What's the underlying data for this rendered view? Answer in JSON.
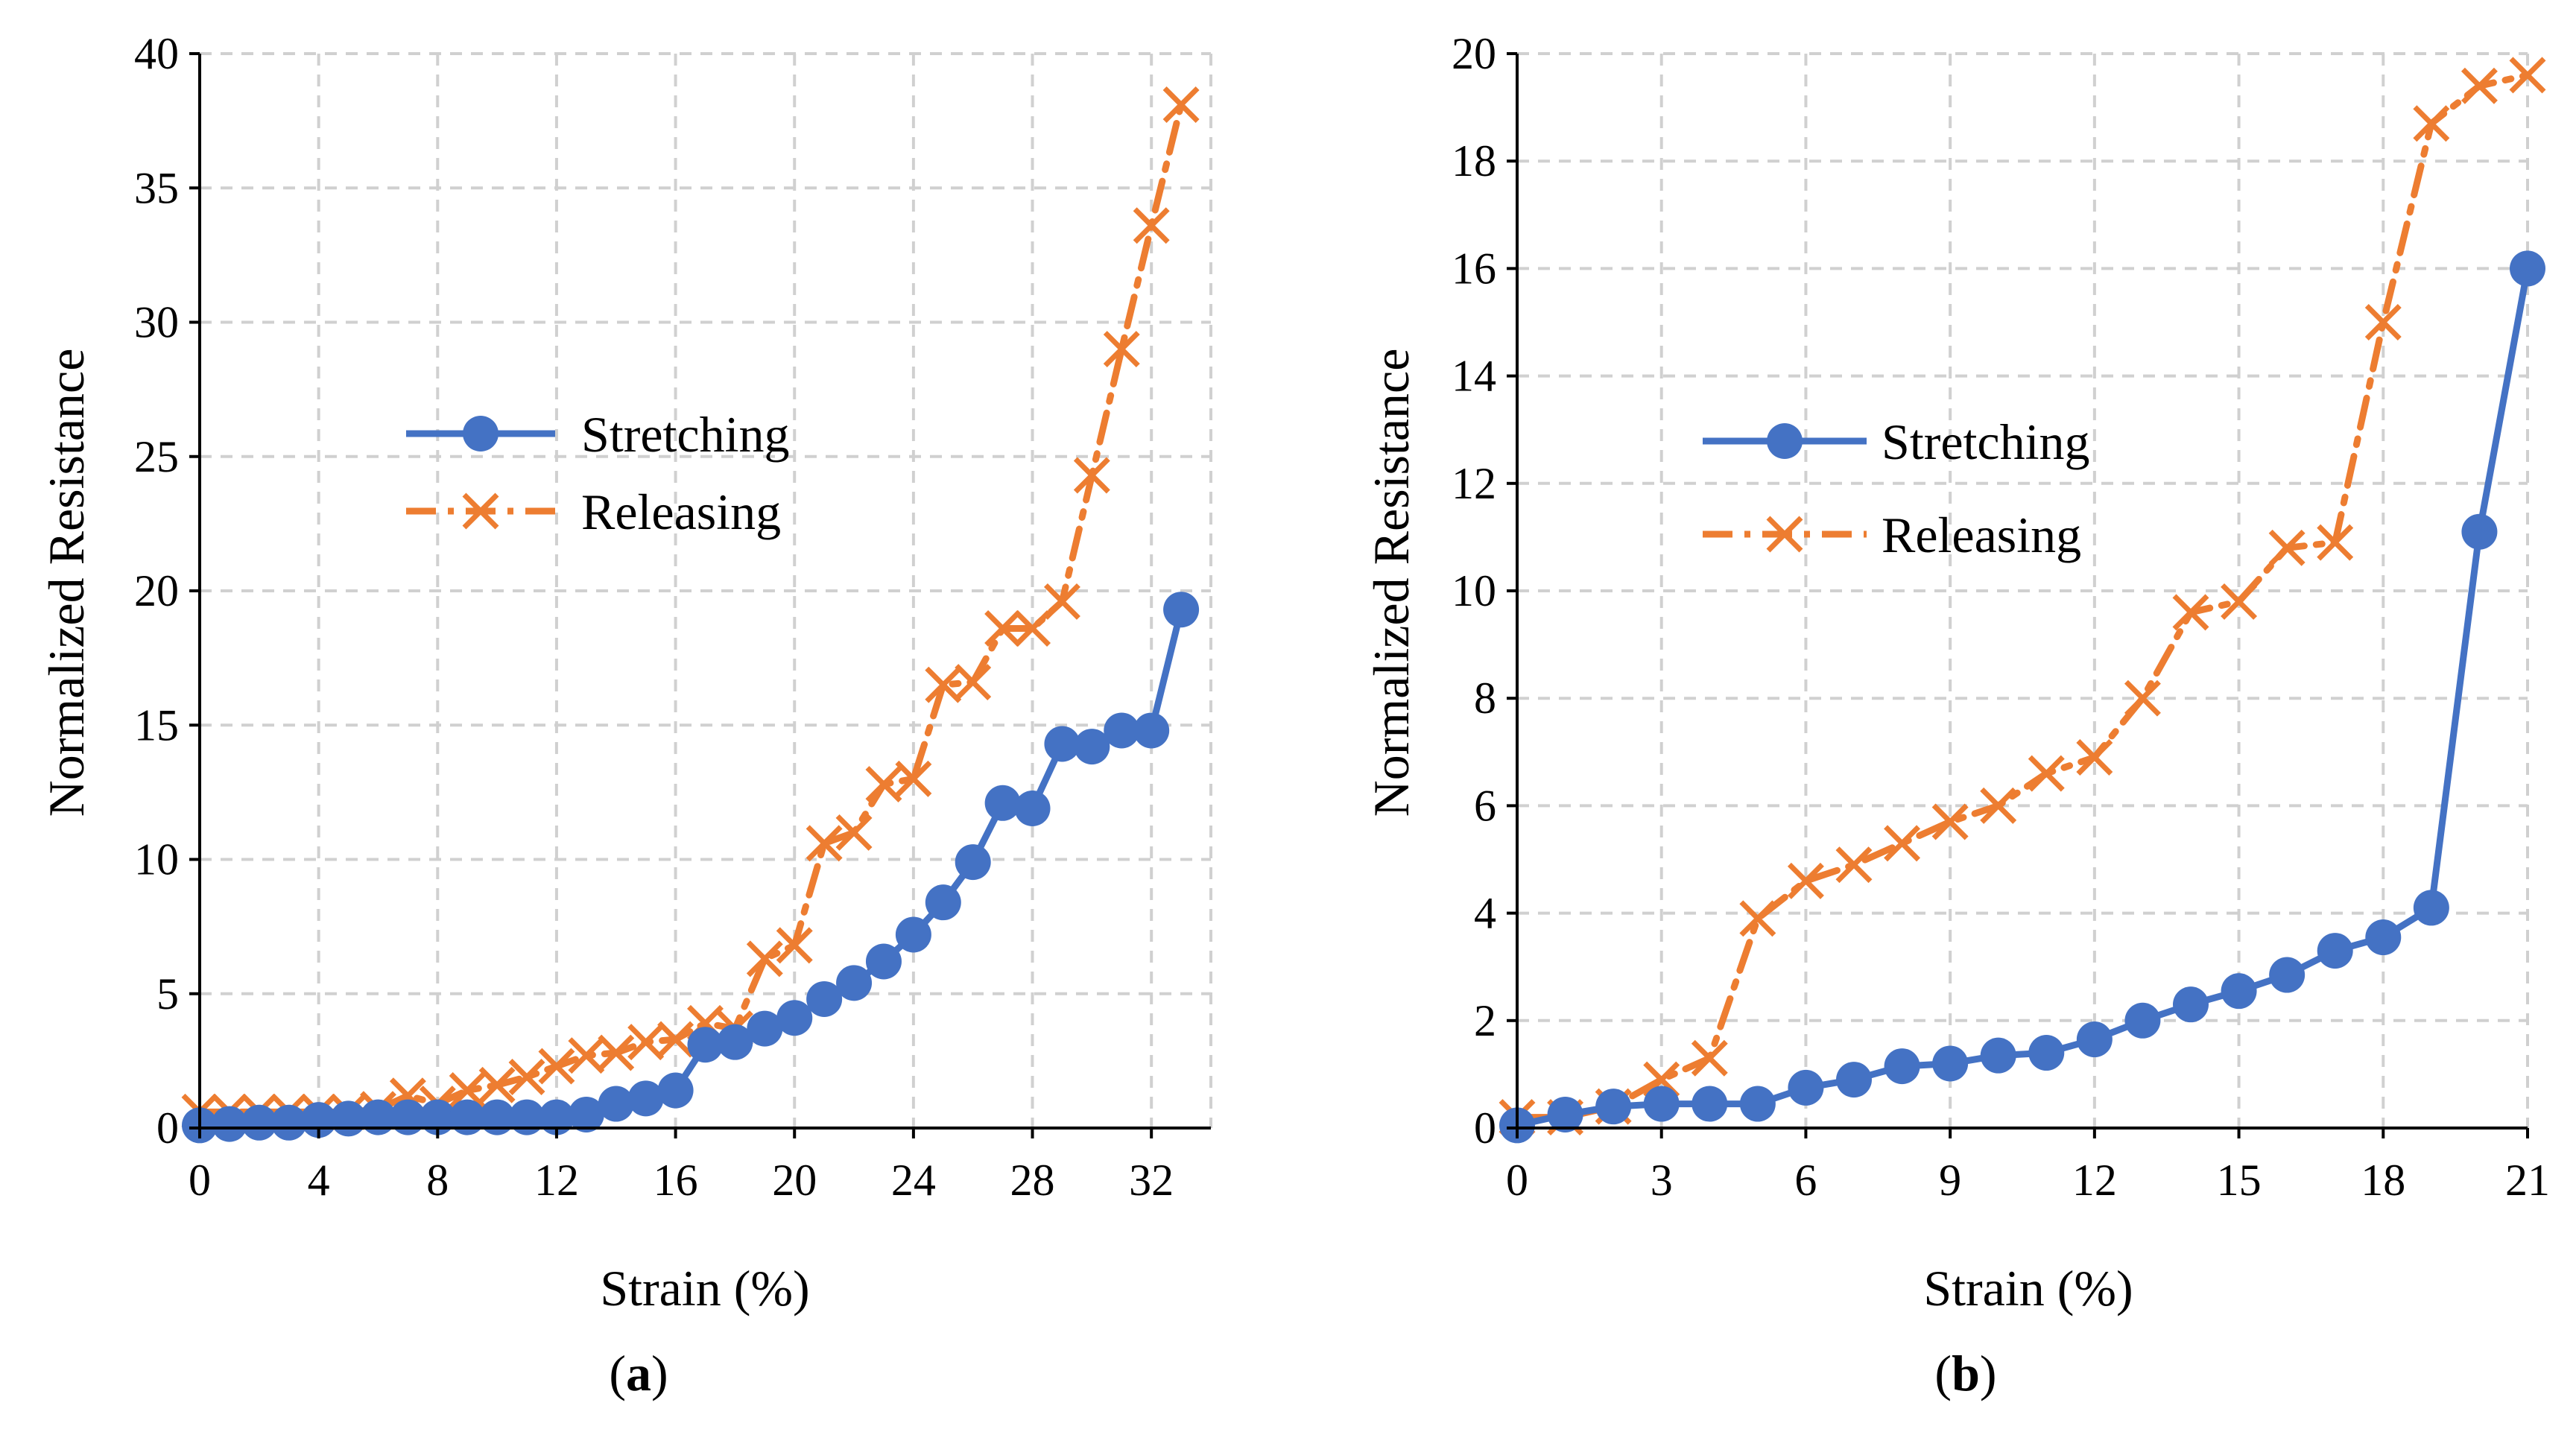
{
  "colors": {
    "stretching": "#4472C4",
    "releasing": "#ED7D31",
    "grid": "#d0d0d0",
    "axis": "#000000"
  },
  "chart_data": [
    {
      "panel": "(a)",
      "panel_parts": {
        "open": "(",
        "letter": "a",
        "close": ")"
      },
      "type": "line",
      "xlabel": "Strain (%)",
      "ylabel": "Normalized Resistance",
      "xlim": [
        0,
        34
      ],
      "ylim": [
        0,
        40
      ],
      "xticks": [
        0,
        4,
        8,
        12,
        16,
        20,
        24,
        28,
        32
      ],
      "yticks": [
        0,
        5,
        10,
        15,
        20,
        25,
        30,
        35,
        40
      ],
      "grid": true,
      "legend_position": "center-left",
      "series": [
        {
          "name": "Stretching",
          "marker": "circle",
          "line": "solid",
          "x": [
            0,
            1,
            2,
            3,
            4,
            5,
            6,
            7,
            8,
            9,
            10,
            11,
            12,
            13,
            14,
            15,
            16,
            17,
            18,
            19,
            20,
            21,
            22,
            23,
            24,
            25,
            26,
            27,
            28,
            29,
            30,
            31,
            32,
            33
          ],
          "y": [
            0.1,
            0.15,
            0.2,
            0.2,
            0.3,
            0.35,
            0.4,
            0.4,
            0.4,
            0.4,
            0.4,
            0.4,
            0.4,
            0.5,
            0.9,
            1.1,
            1.4,
            3.1,
            3.2,
            3.7,
            4.1,
            4.8,
            5.4,
            6.2,
            7.2,
            8.4,
            9.9,
            12.1,
            11.9,
            14.3,
            14.2,
            14.8,
            14.8,
            19.3
          ]
        },
        {
          "name": "Releasing",
          "marker": "x",
          "line": "dash-dot",
          "x": [
            0,
            1,
            2,
            3,
            4,
            5,
            6,
            7,
            8,
            9,
            10,
            11,
            12,
            13,
            14,
            15,
            16,
            17,
            18,
            19,
            20,
            21,
            22,
            23,
            24,
            25,
            26,
            27,
            28,
            29,
            30,
            31,
            32,
            33
          ],
          "y": [
            0.6,
            0.6,
            0.6,
            0.6,
            0.6,
            0.6,
            0.7,
            1.2,
            0.9,
            1.4,
            1.6,
            1.9,
            2.3,
            2.7,
            2.8,
            3.2,
            3.3,
            3.9,
            3.7,
            6.3,
            6.8,
            10.6,
            11.0,
            12.8,
            13.0,
            16.5,
            16.6,
            18.6,
            18.6,
            19.6,
            24.3,
            29.0,
            33.6,
            38.1
          ]
        }
      ]
    },
    {
      "panel": "(b)",
      "panel_parts": {
        "open": "(",
        "letter": "b",
        "close": ")"
      },
      "type": "line",
      "xlabel": "Strain (%)",
      "ylabel": "Normalized Resistance",
      "xlim": [
        0,
        21
      ],
      "ylim": [
        0,
        20
      ],
      "xticks": [
        0,
        3,
        6,
        9,
        12,
        15,
        18,
        21
      ],
      "yticks": [
        0,
        2,
        4,
        6,
        8,
        10,
        12,
        14,
        16,
        18,
        20
      ],
      "grid": true,
      "legend_position": "center-left",
      "series": [
        {
          "name": "Stretching",
          "marker": "circle",
          "line": "solid",
          "x": [
            0,
            1,
            2,
            3,
            4,
            5,
            6,
            7,
            8,
            9,
            10,
            11,
            12,
            13,
            14,
            15,
            16,
            17,
            18,
            19,
            20,
            21
          ],
          "y": [
            0.05,
            0.25,
            0.4,
            0.45,
            0.45,
            0.45,
            0.75,
            0.9,
            1.15,
            1.2,
            1.35,
            1.4,
            1.65,
            2.0,
            2.3,
            2.55,
            2.85,
            3.3,
            3.55,
            4.1,
            11.1,
            16.0
          ]
        },
        {
          "name": "Releasing",
          "marker": "x",
          "line": "dash-dot",
          "x": [
            0,
            1,
            2,
            3,
            4,
            5,
            6,
            7,
            8,
            9,
            10,
            11,
            12,
            13,
            14,
            15,
            16,
            17,
            18,
            19,
            20,
            21
          ],
          "y": [
            0.2,
            0.2,
            0.4,
            0.9,
            1.3,
            3.9,
            4.6,
            4.9,
            5.3,
            5.7,
            6.0,
            6.6,
            6.9,
            8.0,
            9.6,
            9.8,
            10.8,
            10.9,
            15.0,
            18.7,
            19.4,
            19.6
          ]
        }
      ]
    }
  ]
}
